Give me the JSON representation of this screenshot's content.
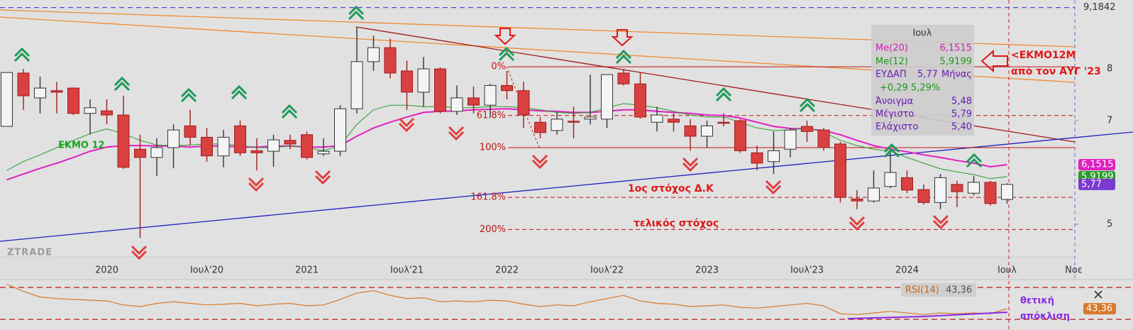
{
  "chart_data": {
    "type": "candlestick",
    "categories": [
      null,
      null,
      null,
      null,
      null,
      null,
      "2020",
      null,
      null,
      null,
      null,
      null,
      "Ιουλ'20",
      null,
      null,
      null,
      null,
      null,
      "2021",
      null,
      null,
      null,
      null,
      null,
      "Ιουλ'21",
      null,
      null,
      null,
      null,
      null,
      "2022",
      null,
      null,
      null,
      null,
      null,
      "Ιουλ'22",
      null,
      null,
      null,
      null,
      null,
      "2023",
      null,
      null,
      null,
      null,
      null,
      "Ιουλ'23",
      null,
      null,
      null,
      null,
      null,
      "2024",
      null,
      null,
      null,
      null,
      null,
      "Ιουλ",
      null,
      null,
      null,
      "Νοε"
    ],
    "open": [
      6.89,
      7.92,
      7.44,
      7.58,
      7.63,
      7.14,
      7.19,
      7.11,
      6.45,
      6.29,
      6.48,
      6.9,
      6.68,
      6.32,
      6.9,
      6.42,
      6.41,
      6.62,
      6.73,
      6.36,
      6.41,
      7.23,
      8.14,
      8.41,
      7.96,
      7.55,
      8.0,
      7.18,
      7.44,
      7.3,
      7.68,
      7.58,
      6.97,
      6.81,
      6.99,
      7.03,
      7.03,
      7.92,
      7.71,
      6.97,
      7.03,
      6.9,
      6.7,
      6.97,
      7.0,
      6.38,
      6.21,
      6.45,
      6.89,
      6.82,
      6.55,
      5.49,
      5.45,
      5.73,
      5.9,
      5.67,
      5.42,
      5.77,
      5.6,
      5.81,
      5.48,
      null,
      null,
      null,
      null
    ],
    "high": [
      7.93,
      8.0,
      7.85,
      7.75,
      7.64,
      7.41,
      7.41,
      7.48,
      6.73,
      6.66,
      6.93,
      7.21,
      6.86,
      6.82,
      7.0,
      6.66,
      6.73,
      6.73,
      6.79,
      6.66,
      7.3,
      8.81,
      8.64,
      8.58,
      8.16,
      8.23,
      8.03,
      7.68,
      7.66,
      7.71,
      7.96,
      7.75,
      7.07,
      7.16,
      7.27,
      7.89,
      7.89,
      7.99,
      7.93,
      7.27,
      7.14,
      7.03,
      7.0,
      7.14,
      7.03,
      6.52,
      6.79,
      6.86,
      7.0,
      6.86,
      6.59,
      5.66,
      6.04,
      6.45,
      6.04,
      5.77,
      5.97,
      5.84,
      5.93,
      5.84,
      5.79,
      null,
      null,
      null,
      null
    ],
    "low": [
      6.89,
      7.21,
      7.14,
      7.14,
      7.11,
      6.73,
      6.93,
      6.07,
      4.74,
      5.93,
      6.08,
      6.52,
      6.21,
      6.1,
      6.32,
      6.04,
      6.11,
      6.45,
      6.25,
      6.32,
      6.32,
      7.14,
      7.96,
      7.82,
      7.21,
      7.27,
      7.14,
      7.11,
      7.14,
      7.07,
      7.41,
      6.86,
      6.66,
      6.73,
      6.66,
      6.93,
      6.86,
      7.68,
      7.04,
      6.79,
      6.79,
      6.42,
      6.48,
      6.89,
      6.38,
      6.04,
      5.97,
      6.29,
      6.59,
      6.42,
      5.42,
      5.29,
      5.42,
      5.7,
      5.6,
      5.38,
      5.29,
      5.33,
      5.56,
      5.36,
      5.4,
      null,
      null,
      null,
      null
    ],
    "close": [
      7.93,
      7.48,
      7.63,
      7.55,
      7.14,
      7.25,
      7.11,
      6.1,
      6.29,
      6.48,
      6.82,
      6.68,
      6.32,
      6.68,
      6.38,
      6.38,
      6.63,
      6.55,
      6.29,
      6.41,
      7.23,
      8.14,
      8.41,
      7.92,
      7.55,
      8.0,
      7.18,
      7.44,
      7.3,
      7.68,
      7.58,
      7.11,
      6.77,
      7.03,
      6.97,
      7.07,
      7.89,
      7.71,
      7.07,
      7.11,
      6.97,
      6.7,
      6.9,
      6.95,
      6.42,
      6.18,
      6.42,
      6.82,
      6.79,
      6.48,
      5.52,
      5.45,
      5.7,
      6.0,
      5.66,
      5.42,
      5.9,
      5.63,
      5.81,
      5.4,
      5.77,
      null,
      null,
      null,
      null
    ],
    "last_label": "5,77",
    "last_color": "#7a3ad0",
    "up_color": "#f4f4f4",
    "down_color": "#d94040",
    "series": [
      {
        "name": "Me(20)",
        "color": "#e020c0",
        "last_label": "6,1515",
        "values": [
          5.86,
          5.97,
          6.08,
          6.18,
          6.29,
          6.41,
          6.49,
          6.52,
          6.52,
          6.51,
          6.51,
          6.49,
          6.51,
          6.51,
          6.49,
          6.49,
          6.51,
          6.51,
          6.49,
          6.49,
          6.52,
          6.7,
          6.86,
          6.97,
          7.07,
          7.16,
          7.18,
          7.19,
          7.21,
          7.22,
          7.23,
          7.21,
          7.19,
          7.18,
          7.16,
          7.16,
          7.18,
          7.21,
          7.21,
          7.18,
          7.16,
          7.14,
          7.11,
          7.1,
          7.05,
          6.97,
          6.89,
          6.85,
          6.84,
          6.81,
          6.73,
          6.62,
          6.52,
          6.45,
          6.4,
          6.34,
          6.29,
          6.23,
          6.18,
          6.11,
          6.1515,
          null,
          null,
          null,
          null
        ]
      },
      {
        "name": "Me(12)",
        "color": "#2a9a2a",
        "last_label": "5,9199",
        "values": [
          6.04,
          6.21,
          6.34,
          6.48,
          6.62,
          6.75,
          6.84,
          6.75,
          6.62,
          6.53,
          6.52,
          6.53,
          6.55,
          6.55,
          6.52,
          6.48,
          6.48,
          6.51,
          6.48,
          6.42,
          6.52,
          6.93,
          7.21,
          7.3,
          7.3,
          7.27,
          7.27,
          7.25,
          7.25,
          7.27,
          7.27,
          7.25,
          7.21,
          7.16,
          7.14,
          7.16,
          7.25,
          7.33,
          7.3,
          7.25,
          7.18,
          7.11,
          7.07,
          7.07,
          6.97,
          6.86,
          6.81,
          6.82,
          6.86,
          6.78,
          6.62,
          6.52,
          6.45,
          6.41,
          6.29,
          6.18,
          6.07,
          6.01,
          5.96,
          5.88,
          5.9199,
          null,
          null,
          null,
          null
        ]
      }
    ],
    "ylim": [
      4.37,
      9.33
    ],
    "yticks": [
      5,
      7,
      8
    ],
    "hlines": [
      {
        "value": 9.1842,
        "label": "9,1842",
        "color": "#4a4ad8"
      }
    ],
    "fib_levels": [
      {
        "label": "0%",
        "value": 8.04,
        "dashed": false
      },
      {
        "label": "61.8%",
        "value": 7.1,
        "dashed": true
      },
      {
        "label": "100%",
        "value": 6.48,
        "dashed": false
      },
      {
        "label": "161.8%",
        "value": 5.52,
        "dashed": true
      },
      {
        "label": "200%",
        "value": 4.9,
        "dashed": true
      }
    ]
  },
  "rsi": {
    "name": "RSI(14)",
    "last_label": "43,36",
    "color": "#d87a2a",
    "ylim": [
      19.3,
      78.9
    ],
    "levels": [
      70,
      30
    ],
    "values": [
      74,
      65,
      58,
      56,
      55,
      54,
      53,
      48,
      46,
      50,
      52,
      50,
      48,
      49,
      50,
      47,
      49,
      50,
      47,
      48,
      55,
      63,
      66,
      60,
      56,
      57,
      52,
      53,
      52,
      54,
      53,
      49,
      46,
      48,
      47,
      52,
      56,
      60,
      53,
      50,
      49,
      46,
      47,
      48,
      45,
      44,
      46,
      48,
      50,
      47,
      37,
      36,
      38,
      40,
      38,
      36,
      38,
      37,
      38,
      37,
      43.36,
      null,
      null,
      null,
      null
    ]
  },
  "tooltip": {
    "title": "Ιουλ",
    "symbol": "ΕΥΔΑΠ",
    "period": "Μήνας",
    "change": "+0,29 5,29%",
    "rows": [
      [
        "Άνοιγμα",
        "5,48"
      ],
      [
        "Μέγιστο",
        "5,79"
      ],
      [
        "Ελάχιστο",
        "5,40"
      ]
    ]
  },
  "annotations": [
    "ΕΚΜΟ 12",
    "1ος στόχος Δ.Κ",
    "τελικός στόχος",
    "<ΕΚΜΟ12Μ",
    "από τον ΑΥΓ '23",
    "θετική",
    "απόκλιση"
  ],
  "watermark": "ZTRADE"
}
